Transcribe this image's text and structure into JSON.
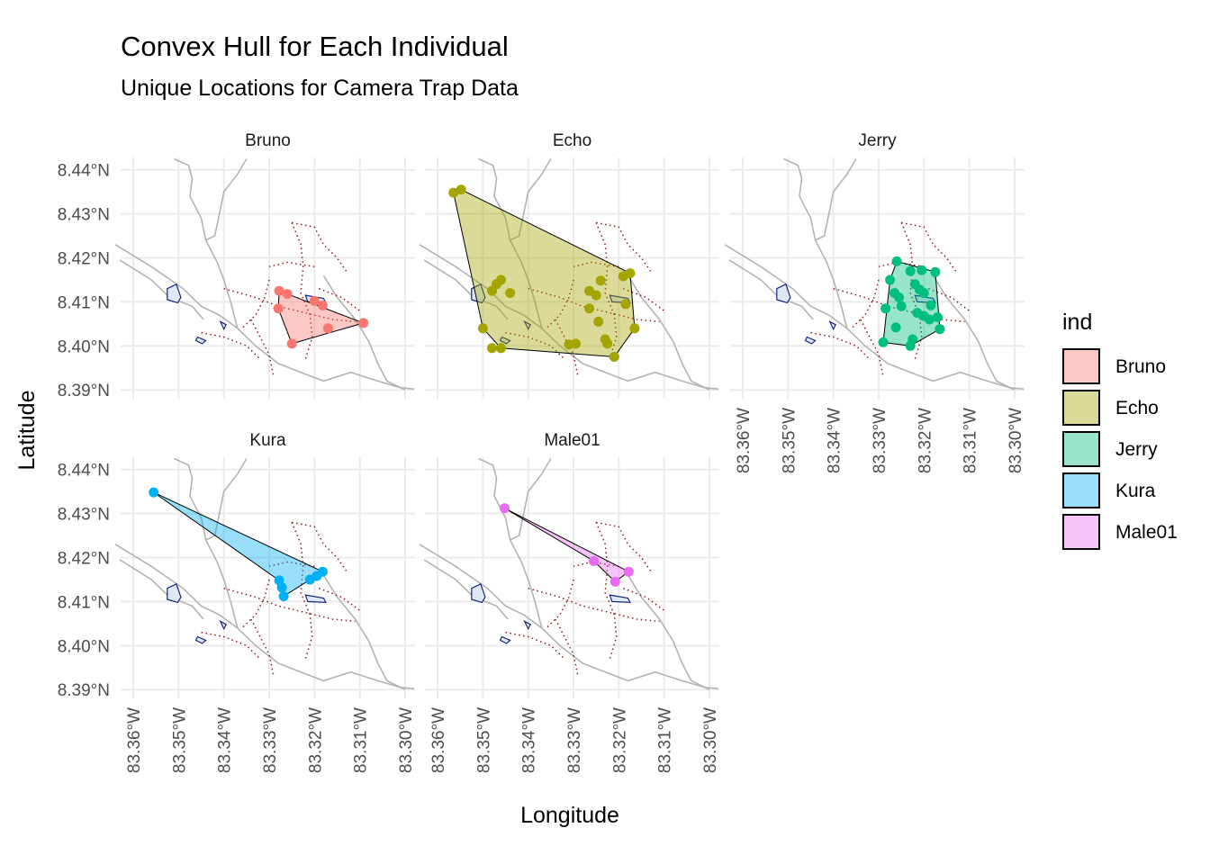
{
  "title": "Convex Hull for Each Individual",
  "subtitle": "Unique Locations for Camera Trap Data",
  "chart_data": {
    "type": "map-facets",
    "xlabel": "Longitude",
    "ylabel": "Latitude",
    "x_ticks": [
      "83.36°W",
      "83.35°W",
      "83.34°W",
      "83.33°W",
      "83.32°W",
      "83.31°W",
      "83.30°W"
    ],
    "y_ticks": [
      "8.44°N",
      "8.43°N",
      "8.42°N",
      "8.41°N",
      "8.40°N",
      "8.39°N"
    ],
    "xlim": [
      -83.3628,
      -83.2978
    ],
    "ylim": [
      8.388,
      8.4428
    ],
    "legend": {
      "title": "ind",
      "placement": "right",
      "entries": [
        {
          "name": "Bruno",
          "color": "#F8766D"
        },
        {
          "name": "Echo",
          "color": "#A3A500"
        },
        {
          "name": "Jerry",
          "color": "#00BF7D"
        },
        {
          "name": "Kura",
          "color": "#00B0F6"
        },
        {
          "name": "Male01",
          "color": "#E76BF3"
        }
      ]
    },
    "facets": [
      {
        "name": "Bruno",
        "color": "#F8766D",
        "hull": [
          [
            -83.3278,
            8.4125
          ],
          [
            -83.3092,
            8.4052
          ],
          [
            -83.325,
            8.4005
          ],
          [
            -83.328,
            8.4085
          ]
        ],
        "points": [
          [
            -83.3278,
            8.4125
          ],
          [
            -83.326,
            8.4118
          ],
          [
            -83.328,
            8.4085
          ],
          [
            -83.325,
            8.4005
          ],
          [
            -83.3092,
            8.4052
          ],
          [
            -83.3182,
            8.4092
          ],
          [
            -83.32,
            8.4102
          ],
          [
            -83.317,
            8.404
          ]
        ]
      },
      {
        "name": "Echo",
        "color": "#A3A500",
        "hull": [
          [
            -83.3548,
            8.4355
          ],
          [
            -83.3175,
            8.4165
          ],
          [
            -83.3165,
            8.404
          ],
          [
            -83.321,
            8.3975
          ],
          [
            -83.346,
            8.3995
          ],
          [
            -83.35,
            8.404
          ],
          [
            -83.3565,
            8.4348
          ]
        ],
        "points": [
          [
            -83.3548,
            8.4355
          ],
          [
            -83.3565,
            8.4348
          ],
          [
            -83.3175,
            8.4165
          ],
          [
            -83.319,
            8.4158
          ],
          [
            -83.3185,
            8.4095
          ],
          [
            -83.3165,
            8.404
          ],
          [
            -83.321,
            8.3975
          ],
          [
            -83.3225,
            8.4005
          ],
          [
            -83.3245,
            8.4055
          ],
          [
            -83.3265,
            8.4085
          ],
          [
            -83.325,
            8.4115
          ],
          [
            -83.3265,
            8.4125
          ],
          [
            -83.3295,
            8.4005
          ],
          [
            -83.331,
            8.4003
          ],
          [
            -83.346,
            8.3995
          ],
          [
            -83.348,
            8.3995
          ],
          [
            -83.35,
            8.404
          ],
          [
            -83.346,
            8.415
          ],
          [
            -83.347,
            8.414
          ],
          [
            -83.344,
            8.412
          ],
          [
            -83.348,
            8.4125
          ],
          [
            -83.324,
            8.4148
          ],
          [
            -83.323,
            8.4015
          ]
        ]
      },
      {
        "name": "Jerry",
        "color": "#00BF7D",
        "hull": [
          [
            -83.326,
            8.4192
          ],
          [
            -83.3175,
            8.4168
          ],
          [
            -83.3165,
            8.4038
          ],
          [
            -83.323,
            8.4
          ],
          [
            -83.329,
            8.4008
          ],
          [
            -83.3275,
            8.415
          ]
        ],
        "points": [
          [
            -83.326,
            8.4192
          ],
          [
            -83.323,
            8.417
          ],
          [
            -83.3205,
            8.4172
          ],
          [
            -83.3175,
            8.4168
          ],
          [
            -83.3275,
            8.415
          ],
          [
            -83.3265,
            8.412
          ],
          [
            -83.3255,
            8.411
          ],
          [
            -83.3285,
            8.4085
          ],
          [
            -83.325,
            8.409
          ],
          [
            -83.322,
            8.414
          ],
          [
            -83.321,
            8.4128
          ],
          [
            -83.32,
            8.412
          ],
          [
            -83.3215,
            8.4075
          ],
          [
            -83.32,
            8.4068
          ],
          [
            -83.3185,
            8.4092
          ],
          [
            -83.317,
            8.4065
          ],
          [
            -83.3165,
            8.4038
          ],
          [
            -83.3188,
            8.406
          ],
          [
            -83.323,
            8.4
          ],
          [
            -83.329,
            8.4008
          ],
          [
            -83.3262,
            8.4042
          ],
          [
            -83.3225,
            8.4015
          ]
        ]
      },
      {
        "name": "Kura",
        "color": "#00B0F6",
        "hull": [
          [
            -83.3555,
            8.4348
          ],
          [
            -83.3182,
            8.4168
          ],
          [
            -83.3268,
            8.4112
          ],
          [
            -83.3278,
            8.4148
          ]
        ],
        "points": [
          [
            -83.3555,
            8.4348
          ],
          [
            -83.3182,
            8.4168
          ],
          [
            -83.3195,
            8.4158
          ],
          [
            -83.321,
            8.415
          ],
          [
            -83.3278,
            8.4148
          ],
          [
            -83.3272,
            8.4132
          ],
          [
            -83.3268,
            8.4112
          ]
        ]
      },
      {
        "name": "Male01",
        "color": "#E76BF3",
        "hull": [
          [
            -83.3452,
            8.4312
          ],
          [
            -83.3178,
            8.4168
          ],
          [
            -83.3208,
            8.4145
          ],
          [
            -83.3255,
            8.4192
          ]
        ],
        "points": [
          [
            -83.3452,
            8.4312
          ],
          [
            -83.3178,
            8.4168
          ],
          [
            -83.3208,
            8.4145
          ],
          [
            -83.3255,
            8.4192
          ]
        ]
      }
    ]
  }
}
